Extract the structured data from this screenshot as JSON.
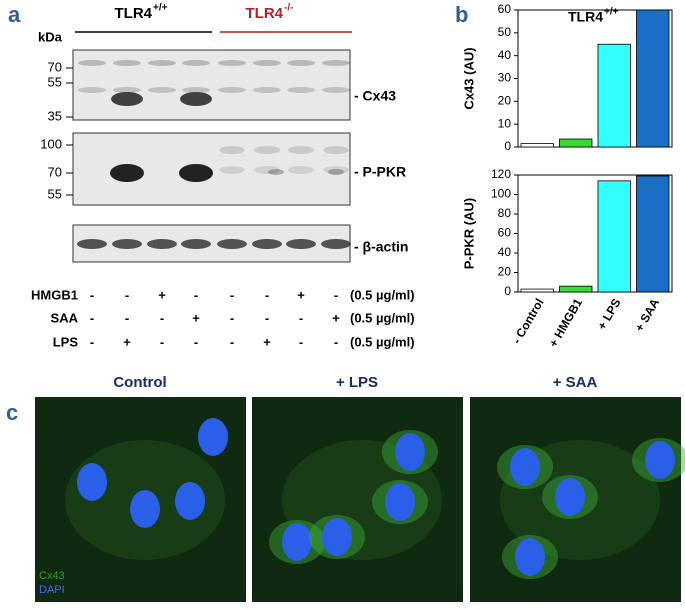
{
  "panels": {
    "a": "a",
    "b": "b",
    "c": "c"
  },
  "blot": {
    "groups": [
      {
        "name": "TLR4",
        "sup": "+/+"
      },
      {
        "name": "TLR4",
        "sup": "-/-"
      }
    ],
    "kda_title": "kDa",
    "markers": [
      {
        "label": "70",
        "blot": 0
      },
      {
        "label": "55",
        "blot": 0
      },
      {
        "label": "35",
        "blot": 0
      },
      {
        "label": "100",
        "blot": 1
      },
      {
        "label": "70",
        "blot": 1
      },
      {
        "label": "55",
        "blot": 1
      }
    ],
    "targets": [
      "- Cx43",
      "- P-PKR",
      "- β-actin"
    ]
  },
  "treatments": {
    "rows": [
      {
        "label": "HMGB1",
        "signs": [
          "-",
          "-",
          "+",
          "-",
          "-",
          "-",
          "+",
          "-"
        ],
        "dose": "(0.5 µg/ml)"
      },
      {
        "label": "SAA",
        "signs": [
          "-",
          "-",
          "-",
          "+",
          "-",
          "-",
          "-",
          "+"
        ],
        "dose": "(0.5 µg/ml)"
      },
      {
        "label": "LPS",
        "signs": [
          "-",
          "+",
          "-",
          "-",
          "-",
          "+",
          "-",
          "-"
        ],
        "dose": "(0.5 µg/ml)"
      }
    ]
  },
  "chart_data": [
    {
      "type": "bar",
      "title": "TLR4",
      "title_sup": "+/+",
      "y_label": "Cx43 (AU)",
      "values": [
        1.5,
        3.5,
        45,
        60
      ],
      "colors": [
        "#ffffff",
        "#33dd33",
        "#33ffff",
        "#1a6fc4"
      ],
      "ylim": [
        0,
        60
      ],
      "yticks": [
        0,
        10,
        20,
        30,
        40,
        50,
        60
      ]
    },
    {
      "type": "bar",
      "y_label": "P-PKR (AU)",
      "categories": [
        "- Control",
        "+ HMGB1",
        "+ LPS",
        "+ SAA"
      ],
      "values": [
        3,
        6,
        114,
        119
      ],
      "colors": [
        "#ffffff",
        "#33dd33",
        "#33ffff",
        "#1a6fc4"
      ],
      "ylim": [
        0,
        120
      ],
      "yticks": [
        0,
        20,
        40,
        60,
        80,
        100,
        120
      ]
    }
  ],
  "micrographs": {
    "titles": [
      "Control",
      "+ LPS",
      "+ SAA"
    ],
    "stains": [
      "Cx43",
      "DAPI"
    ]
  }
}
